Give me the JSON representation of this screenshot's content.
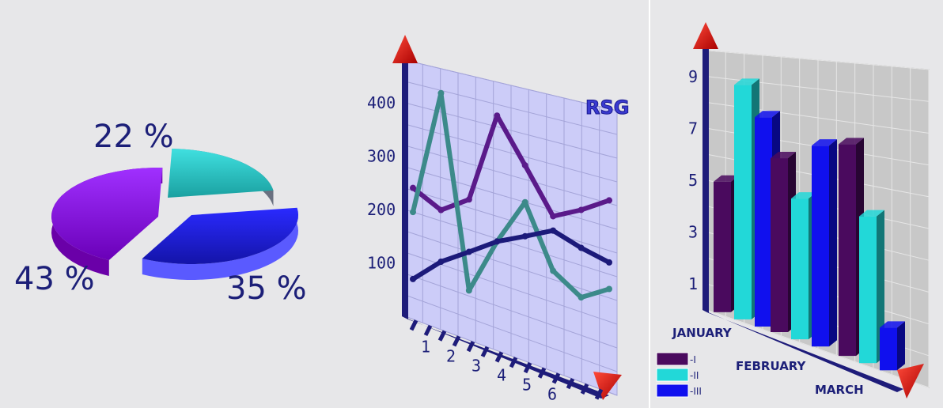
{
  "chart_data": [
    {
      "type": "pie",
      "slices": [
        {
          "label": "43 %",
          "value": 43,
          "color": "#8a10e8"
        },
        {
          "label": "22 %",
          "value": 22,
          "color": "#22c8c8"
        },
        {
          "label": "35 %",
          "value": 35,
          "color": "#2222ee"
        }
      ],
      "title": "",
      "legend": "none"
    },
    {
      "type": "line",
      "x": [
        0,
        1,
        2,
        3,
        4,
        5,
        6,
        7
      ],
      "x_tick_labels": [
        "1",
        "2",
        "3",
        "4",
        "5",
        "6"
      ],
      "y_ticks": [
        "100",
        "200",
        "300",
        "400"
      ],
      "ylim": [
        0,
        480
      ],
      "series": [
        {
          "color": "#5a1a8a",
          "values": [
            245,
            220,
            255,
            420,
            345,
            270,
            295,
            325
          ]
        },
        {
          "color": "#3c8a8a",
          "values": [
            200,
            435,
            90,
            195,
            280,
            175,
            145,
            175
          ]
        },
        {
          "color": "#1c1a7a",
          "values": [
            75,
            125,
            160,
            195,
            220,
            245,
            230,
            220
          ]
        }
      ],
      "logo": "RSG",
      "grid": true,
      "title": "",
      "xlabel": "",
      "ylabel": ""
    },
    {
      "type": "bar",
      "categories": [
        "JANUARY",
        "FEBRUARY",
        "MARCH"
      ],
      "y_ticks": [
        "1",
        "3",
        "5",
        "7",
        "9"
      ],
      "ylim": [
        0,
        10
      ],
      "series": [
        {
          "name": "-I",
          "color": "#4a0a5e",
          "values": [
            5,
            6.3,
            7.2
          ]
        },
        {
          "name": "-II",
          "color": "#22d8d8",
          "values": [
            8.8,
            5,
            4.9
          ]
        },
        {
          "name": "-III",
          "color": "#1010ee",
          "values": [
            7.7,
            7,
            1.4
          ]
        }
      ],
      "grid": true,
      "legend": "bottom-left",
      "title": "",
      "xlabel": "",
      "ylabel": ""
    }
  ]
}
